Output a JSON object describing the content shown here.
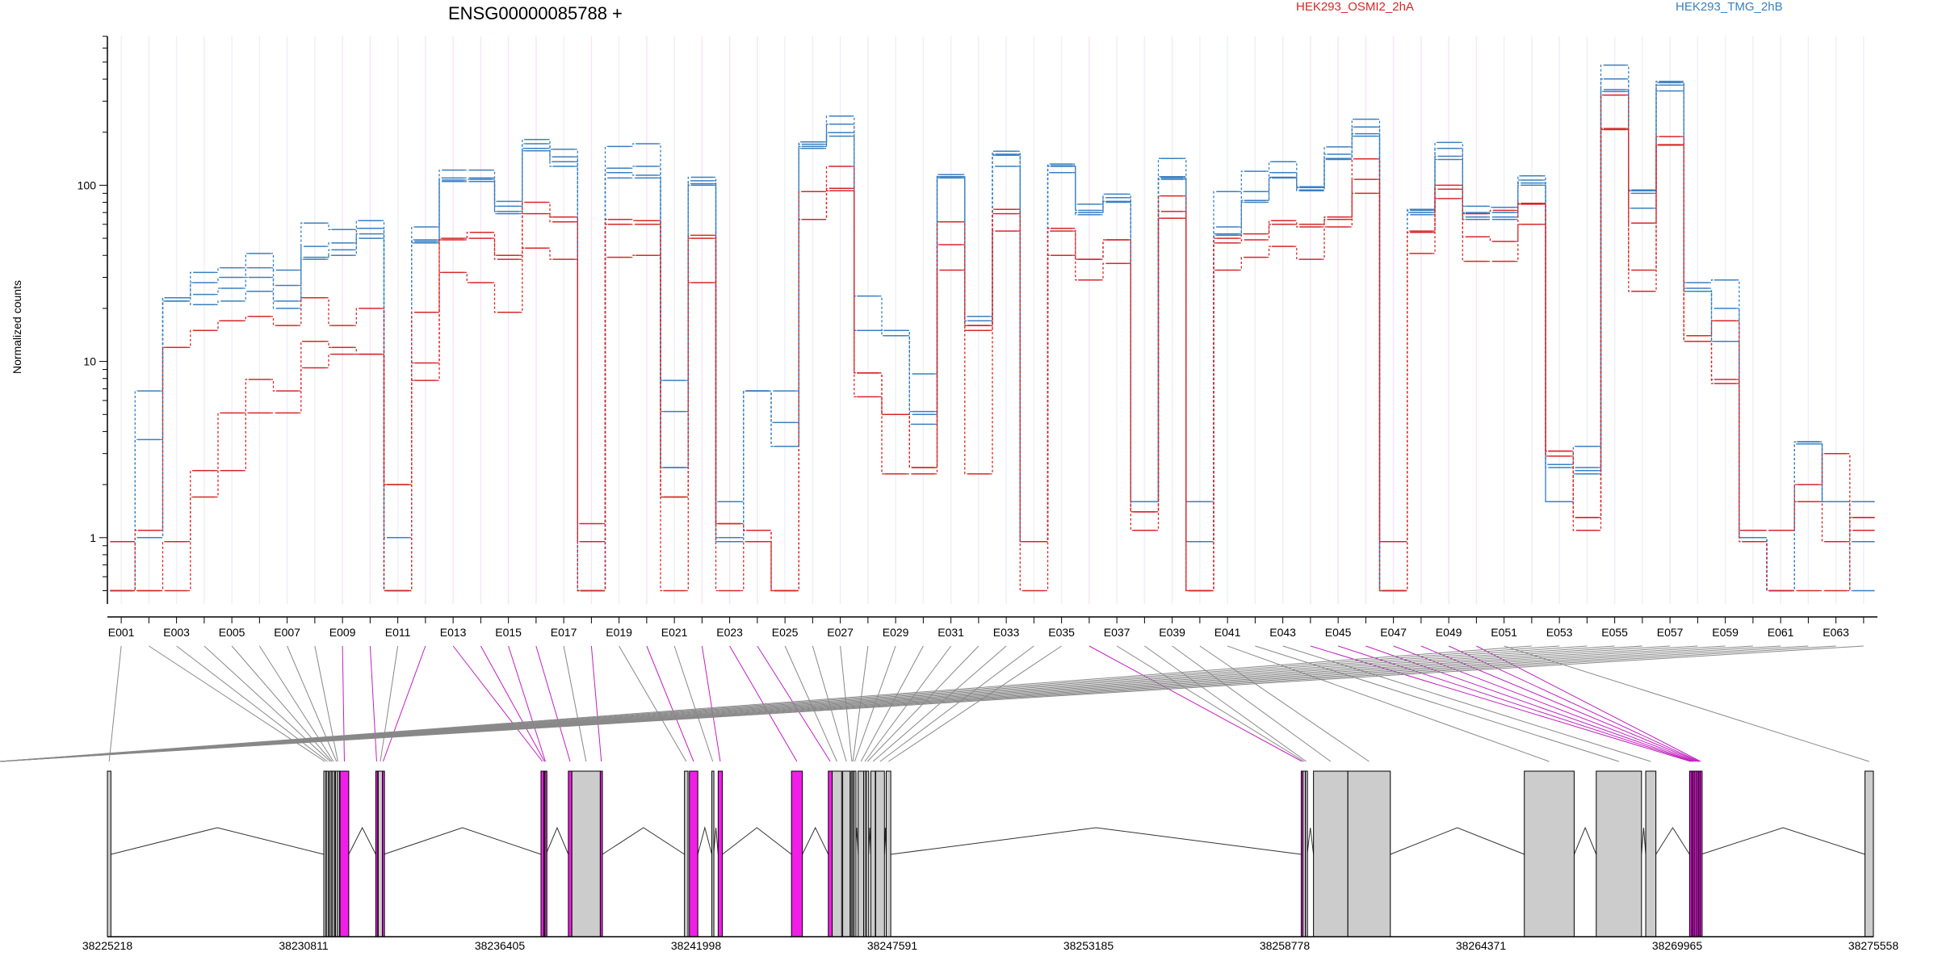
{
  "title": "ENSG00000085788 +",
  "legend": [
    {
      "label": "HEK293_OSMI2_2hA",
      "color": "#d62728"
    },
    {
      "label": "HEK293_TMG_2hB",
      "color": "#3a7fc0"
    }
  ],
  "colors": {
    "exon_constitutive": "#cccccc",
    "exon_highlight": "#f01ee6",
    "link_gray": "#888888",
    "link_magenta": "#c020c0"
  },
  "chart_data": {
    "type": "line",
    "scale": "log",
    "ylabel": "Normalized counts",
    "yticks": [
      {
        "v": 1,
        "label": "1"
      },
      {
        "v": 10,
        "label": "10"
      },
      {
        "v": 100,
        "label": "100"
      }
    ],
    "ylim": [
      0.42,
      700
    ],
    "exon_tick_labels": [
      "E001",
      "E003",
      "E005",
      "E007",
      "E009",
      "E011",
      "E013",
      "E015",
      "E017",
      "E019",
      "E021",
      "E023",
      "E025",
      "E027",
      "E029",
      "E031",
      "E033",
      "E035",
      "E037",
      "E039",
      "E041",
      "E043",
      "E045",
      "E047",
      "E049",
      "E051",
      "E053",
      "E055",
      "E057",
      "E059",
      "E061",
      "E063"
    ],
    "highlight_exons": [
      9,
      10,
      12,
      13,
      14,
      15,
      16,
      18,
      20,
      22,
      23,
      24,
      36,
      44,
      45,
      46,
      47,
      48,
      49,
      50
    ],
    "series": [
      {
        "name": "",
        "color": "#3a7fc0",
        "values": [
          0.5,
          6.8,
          23,
          32,
          34,
          41,
          33,
          61,
          56,
          63,
          0.5,
          58,
          122,
          122,
          81,
          182,
          160,
          0.5,
          166,
          172,
          7.8,
          111,
          1.6,
          6.8,
          6.8,
          176,
          247,
          23.5,
          15,
          4.4,
          115,
          18,
          156,
          0.95,
          132,
          78,
          89,
          1.6,
          142,
          1.6,
          92,
          120,
          136,
          98,
          165,
          237,
          0.5,
          73,
          175,
          76,
          75,
          113,
          2.6,
          3.3,
          481,
          93,
          389,
          28,
          29,
          1.0,
          0.5,
          3.5,
          1.6,
          1.6
        ]
      },
      {
        "name": "",
        "color": "#3a7fc0",
        "values": [
          0.5,
          3.6,
          22,
          28,
          30,
          34,
          27,
          45,
          47,
          57,
          1.0,
          49,
          110,
          110,
          76,
          172,
          145,
          0.5,
          125,
          128,
          5.2,
          106,
          1.0,
          6.8,
          4.5,
          171,
          222,
          15,
          15,
          8.5,
          112,
          16,
          128,
          0.95,
          118,
          72,
          85,
          1.6,
          112,
          0.95,
          58,
          92,
          118,
          97,
          150,
          214,
          0.5,
          72,
          162,
          70,
          70,
          107,
          2.5,
          2.5,
          401,
          74,
          343,
          25,
          20,
          1.0,
          0.5,
          3.5,
          1.6,
          1.6
        ]
      },
      {
        "name": "",
        "color": "#3a7fc0",
        "values": [
          0.5,
          1.0,
          23,
          24,
          26,
          30,
          22,
          39,
          43,
          53,
          0.5,
          48,
          107,
          108,
          71,
          162,
          136,
          0.5,
          118,
          114,
          2.5,
          102,
          0.95,
          6.8,
          3.3,
          166,
          199,
          15,
          15,
          5.2,
          112,
          17,
          150,
          0.95,
          129,
          70,
          81,
          1.6,
          110,
          0.95,
          53,
          82,
          111,
          94,
          142,
          196,
          0.5,
          70,
          146,
          66,
          66,
          103,
          1.6,
          2.4,
          349,
          94,
          382,
          26,
          13,
          1.0,
          0.5,
          3.5,
          1.6,
          0.95
        ]
      },
      {
        "name": "",
        "color": "#3a7fc0",
        "values": [
          0.5,
          1.0,
          22,
          21,
          22,
          25,
          20,
          38,
          40,
          50,
          0.5,
          47,
          105,
          105,
          69,
          157,
          128,
          0.5,
          110,
          110,
          2.5,
          100,
          0.95,
          6.8,
          3.3,
          162,
          190,
          15,
          14,
          5.0,
          110,
          16,
          148,
          0.95,
          128,
          68,
          80,
          1.6,
          108,
          0.95,
          52,
          80,
          110,
          93,
          140,
          190,
          0.5,
          68,
          140,
          64,
          64,
          100,
          1.6,
          2.3,
          340,
          90,
          370,
          25,
          13,
          1.0,
          0.5,
          3.4,
          1.6,
          0.5
        ]
      },
      {
        "name": "",
        "color": "#d62728",
        "values": [
          0.95,
          1.1,
          12,
          15,
          17,
          18,
          16,
          23,
          16,
          20,
          2.0,
          19,
          49,
          54,
          40,
          80,
          66,
          1.2,
          64,
          63,
          1.7,
          52,
          1.2,
          1.1,
          0.5,
          64,
          128,
          8.6,
          5.0,
          2.5,
          62,
          16,
          73,
          0.95,
          57,
          38,
          49,
          1.4,
          87,
          0.5,
          50,
          53,
          63,
          60,
          66,
          141,
          0.95,
          55,
          100,
          69,
          72,
          79,
          3.1,
          1.3,
          325,
          61,
          189,
          14,
          17,
          1.1,
          1.1,
          2.0,
          3.0,
          1.3
        ]
      },
      {
        "name": "",
        "color": "#d62728",
        "values": [
          0.95,
          0.5,
          0.95,
          2.4,
          5.1,
          7.9,
          6.8,
          13,
          12,
          11,
          2.0,
          9.8,
          50,
          50,
          38,
          69,
          62,
          0.95,
          60,
          60,
          1.7,
          50,
          1.2,
          1.1,
          0.5,
          92,
          96,
          8.6,
          5.0,
          2.5,
          46,
          15,
          69,
          0.95,
          55,
          38,
          49,
          1.4,
          71,
          0.5,
          47,
          49,
          60,
          58,
          64,
          108,
          0.95,
          54,
          95,
          51,
          48,
          78,
          3.1,
          1.3,
          207,
          33,
          169,
          13,
          7.9,
          1.1,
          1.1,
          1.6,
          0.95,
          1.3
        ]
      },
      {
        "name": "",
        "color": "#d62728",
        "values": [
          0.5,
          0.5,
          0.5,
          1.7,
          2.4,
          5.1,
          5.1,
          9.2,
          11,
          11,
          0.5,
          7.8,
          32,
          28,
          19,
          44,
          38,
          0.5,
          39,
          40,
          0.5,
          28,
          0.5,
          0.95,
          0.5,
          64,
          93,
          6.3,
          2.3,
          2.3,
          33,
          2.3,
          55,
          0.5,
          40,
          29,
          36,
          1.1,
          65,
          0.5,
          33,
          39,
          45,
          38,
          58,
          90,
          0.5,
          41,
          84,
          37,
          37,
          60,
          2.9,
          1.1,
          210,
          25,
          170,
          13,
          7.5,
          0.95,
          0.5,
          0.5,
          0.5,
          1.1
        ]
      }
    ],
    "genomic_tick_labels": [
      "38225218",
      "38230811",
      "38236405",
      "38241998",
      "38247591",
      "38253185",
      "38258778",
      "38264371",
      "38269965",
      "38275558"
    ],
    "genomic_exons": [
      {
        "s": 0,
        "e": 100
      },
      {
        "s": 6170,
        "e": 6230
      },
      {
        "s": 6240,
        "e": 6300
      },
      {
        "s": 6330,
        "e": 6380
      },
      {
        "s": 6380,
        "e": 6420
      },
      {
        "s": 6420,
        "e": 6470
      },
      {
        "s": 6500,
        "e": 6560
      },
      {
        "s": 6560,
        "e": 6580
      },
      {
        "s": 6630,
        "e": 6880
      },
      {
        "s": 7650,
        "e": 7700
      },
      {
        "s": 7720,
        "e": 7840
      },
      {
        "s": 7840,
        "e": 7880
      },
      {
        "s": 12360,
        "e": 12440
      },
      {
        "s": 12450,
        "e": 12470
      },
      {
        "s": 12470,
        "e": 12500
      },
      {
        "s": 13140,
        "e": 13240
      },
      {
        "s": 13240,
        "e": 14050
      },
      {
        "s": 14050,
        "e": 14110
      },
      {
        "s": 16450,
        "e": 16550
      },
      {
        "s": 16590,
        "e": 16830
      },
      {
        "s": 17230,
        "e": 17280
      },
      {
        "s": 17410,
        "e": 17530
      },
      {
        "s": 19500,
        "e": 19810
      },
      {
        "s": 20550,
        "e": 20660
      },
      {
        "s": 20660,
        "e": 20930
      },
      {
        "s": 20960,
        "e": 21170
      },
      {
        "s": 21200,
        "e": 21240
      },
      {
        "s": 21240,
        "e": 21260
      },
      {
        "s": 21280,
        "e": 21320
      },
      {
        "s": 21400,
        "e": 21560
      },
      {
        "s": 21560,
        "e": 21620
      },
      {
        "s": 21630,
        "e": 21700
      },
      {
        "s": 21760,
        "e": 21890
      },
      {
        "s": 21900,
        "e": 22150
      },
      {
        "s": 22200,
        "e": 22330
      },
      {
        "s": 34030,
        "e": 34080
      },
      {
        "s": 34080,
        "e": 34150
      },
      {
        "s": 34150,
        "e": 34200
      },
      {
        "s": 34380,
        "e": 35360
      },
      {
        "s": 35360,
        "e": 36570
      },
      {
        "s": 40390,
        "e": 41810
      },
      {
        "s": 42440,
        "e": 43730
      },
      {
        "s": 43850,
        "e": 44140
      },
      {
        "s": 45100,
        "e": 45160
      },
      {
        "s": 45160,
        "e": 45200
      },
      {
        "s": 45200,
        "e": 45250
      },
      {
        "s": 45250,
        "e": 45310
      },
      {
        "s": 45310,
        "e": 45360
      },
      {
        "s": 45360,
        "e": 45380
      },
      {
        "s": 45400,
        "e": 45430
      },
      {
        "s": 50100,
        "e": 50340
      }
    ]
  }
}
